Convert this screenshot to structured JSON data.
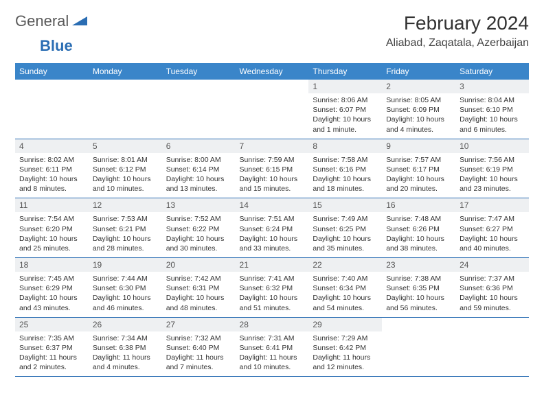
{
  "brand": {
    "text1": "General",
    "text2": "Blue"
  },
  "title": "February 2024",
  "location": "Aliabad, Zaqatala, Azerbaijan",
  "colors": {
    "header_bg": "#3a85c9",
    "border": "#2a6db3",
    "daynum_bg": "#eef0f2",
    "page_bg": "#ffffff",
    "text": "#333333"
  },
  "dayHeaders": [
    "Sunday",
    "Monday",
    "Tuesday",
    "Wednesday",
    "Thursday",
    "Friday",
    "Saturday"
  ],
  "weeks": [
    [
      {
        "n": "",
        "sr": "",
        "ss": "",
        "dl": ""
      },
      {
        "n": "",
        "sr": "",
        "ss": "",
        "dl": ""
      },
      {
        "n": "",
        "sr": "",
        "ss": "",
        "dl": ""
      },
      {
        "n": "",
        "sr": "",
        "ss": "",
        "dl": ""
      },
      {
        "n": "1",
        "sr": "Sunrise: 8:06 AM",
        "ss": "Sunset: 6:07 PM",
        "dl": "Daylight: 10 hours and 1 minute."
      },
      {
        "n": "2",
        "sr": "Sunrise: 8:05 AM",
        "ss": "Sunset: 6:09 PM",
        "dl": "Daylight: 10 hours and 4 minutes."
      },
      {
        "n": "3",
        "sr": "Sunrise: 8:04 AM",
        "ss": "Sunset: 6:10 PM",
        "dl": "Daylight: 10 hours and 6 minutes."
      }
    ],
    [
      {
        "n": "4",
        "sr": "Sunrise: 8:02 AM",
        "ss": "Sunset: 6:11 PM",
        "dl": "Daylight: 10 hours and 8 minutes."
      },
      {
        "n": "5",
        "sr": "Sunrise: 8:01 AM",
        "ss": "Sunset: 6:12 PM",
        "dl": "Daylight: 10 hours and 10 minutes."
      },
      {
        "n": "6",
        "sr": "Sunrise: 8:00 AM",
        "ss": "Sunset: 6:14 PM",
        "dl": "Daylight: 10 hours and 13 minutes."
      },
      {
        "n": "7",
        "sr": "Sunrise: 7:59 AM",
        "ss": "Sunset: 6:15 PM",
        "dl": "Daylight: 10 hours and 15 minutes."
      },
      {
        "n": "8",
        "sr": "Sunrise: 7:58 AM",
        "ss": "Sunset: 6:16 PM",
        "dl": "Daylight: 10 hours and 18 minutes."
      },
      {
        "n": "9",
        "sr": "Sunrise: 7:57 AM",
        "ss": "Sunset: 6:17 PM",
        "dl": "Daylight: 10 hours and 20 minutes."
      },
      {
        "n": "10",
        "sr": "Sunrise: 7:56 AM",
        "ss": "Sunset: 6:19 PM",
        "dl": "Daylight: 10 hours and 23 minutes."
      }
    ],
    [
      {
        "n": "11",
        "sr": "Sunrise: 7:54 AM",
        "ss": "Sunset: 6:20 PM",
        "dl": "Daylight: 10 hours and 25 minutes."
      },
      {
        "n": "12",
        "sr": "Sunrise: 7:53 AM",
        "ss": "Sunset: 6:21 PM",
        "dl": "Daylight: 10 hours and 28 minutes."
      },
      {
        "n": "13",
        "sr": "Sunrise: 7:52 AM",
        "ss": "Sunset: 6:22 PM",
        "dl": "Daylight: 10 hours and 30 minutes."
      },
      {
        "n": "14",
        "sr": "Sunrise: 7:51 AM",
        "ss": "Sunset: 6:24 PM",
        "dl": "Daylight: 10 hours and 33 minutes."
      },
      {
        "n": "15",
        "sr": "Sunrise: 7:49 AM",
        "ss": "Sunset: 6:25 PM",
        "dl": "Daylight: 10 hours and 35 minutes."
      },
      {
        "n": "16",
        "sr": "Sunrise: 7:48 AM",
        "ss": "Sunset: 6:26 PM",
        "dl": "Daylight: 10 hours and 38 minutes."
      },
      {
        "n": "17",
        "sr": "Sunrise: 7:47 AM",
        "ss": "Sunset: 6:27 PM",
        "dl": "Daylight: 10 hours and 40 minutes."
      }
    ],
    [
      {
        "n": "18",
        "sr": "Sunrise: 7:45 AM",
        "ss": "Sunset: 6:29 PM",
        "dl": "Daylight: 10 hours and 43 minutes."
      },
      {
        "n": "19",
        "sr": "Sunrise: 7:44 AM",
        "ss": "Sunset: 6:30 PM",
        "dl": "Daylight: 10 hours and 46 minutes."
      },
      {
        "n": "20",
        "sr": "Sunrise: 7:42 AM",
        "ss": "Sunset: 6:31 PM",
        "dl": "Daylight: 10 hours and 48 minutes."
      },
      {
        "n": "21",
        "sr": "Sunrise: 7:41 AM",
        "ss": "Sunset: 6:32 PM",
        "dl": "Daylight: 10 hours and 51 minutes."
      },
      {
        "n": "22",
        "sr": "Sunrise: 7:40 AM",
        "ss": "Sunset: 6:34 PM",
        "dl": "Daylight: 10 hours and 54 minutes."
      },
      {
        "n": "23",
        "sr": "Sunrise: 7:38 AM",
        "ss": "Sunset: 6:35 PM",
        "dl": "Daylight: 10 hours and 56 minutes."
      },
      {
        "n": "24",
        "sr": "Sunrise: 7:37 AM",
        "ss": "Sunset: 6:36 PM",
        "dl": "Daylight: 10 hours and 59 minutes."
      }
    ],
    [
      {
        "n": "25",
        "sr": "Sunrise: 7:35 AM",
        "ss": "Sunset: 6:37 PM",
        "dl": "Daylight: 11 hours and 2 minutes."
      },
      {
        "n": "26",
        "sr": "Sunrise: 7:34 AM",
        "ss": "Sunset: 6:38 PM",
        "dl": "Daylight: 11 hours and 4 minutes."
      },
      {
        "n": "27",
        "sr": "Sunrise: 7:32 AM",
        "ss": "Sunset: 6:40 PM",
        "dl": "Daylight: 11 hours and 7 minutes."
      },
      {
        "n": "28",
        "sr": "Sunrise: 7:31 AM",
        "ss": "Sunset: 6:41 PM",
        "dl": "Daylight: 11 hours and 10 minutes."
      },
      {
        "n": "29",
        "sr": "Sunrise: 7:29 AM",
        "ss": "Sunset: 6:42 PM",
        "dl": "Daylight: 11 hours and 12 minutes."
      },
      {
        "n": "",
        "sr": "",
        "ss": "",
        "dl": ""
      },
      {
        "n": "",
        "sr": "",
        "ss": "",
        "dl": ""
      }
    ]
  ]
}
